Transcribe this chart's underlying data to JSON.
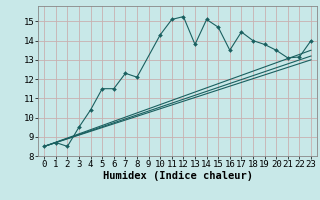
{
  "xlabel": "Humidex (Indice chaleur)",
  "bg_color": "#c8e8e8",
  "grid_color": "#c8b0b0",
  "line_color": "#1a6060",
  "xlim": [
    -0.5,
    23.5
  ],
  "ylim": [
    8,
    15.8
  ],
  "yticks": [
    8,
    9,
    10,
    11,
    12,
    13,
    14,
    15
  ],
  "xticks": [
    0,
    1,
    2,
    3,
    4,
    5,
    6,
    7,
    8,
    9,
    10,
    11,
    12,
    13,
    14,
    15,
    16,
    17,
    18,
    19,
    20,
    21,
    22,
    23
  ],
  "main_x": [
    0,
    1,
    2,
    3,
    4,
    5,
    6,
    7,
    8,
    10,
    11,
    12,
    13,
    14,
    15,
    16,
    17,
    18,
    19,
    20,
    21,
    22,
    23
  ],
  "main_y": [
    8.5,
    8.7,
    8.5,
    9.5,
    10.4,
    11.5,
    11.5,
    12.3,
    12.1,
    14.3,
    15.1,
    15.25,
    13.8,
    15.1,
    14.7,
    13.5,
    14.45,
    14.0,
    13.8,
    13.5,
    13.1,
    13.15,
    14.0
  ],
  "line2_x": [
    0,
    23
  ],
  "line2_y": [
    8.5,
    13.2
  ],
  "line3_x": [
    0,
    23
  ],
  "line3_y": [
    8.5,
    13.5
  ],
  "line4_x": [
    0,
    23
  ],
  "line4_y": [
    8.5,
    13.0
  ],
  "tick_fontsize": 6.5,
  "label_fontsize": 7.5
}
